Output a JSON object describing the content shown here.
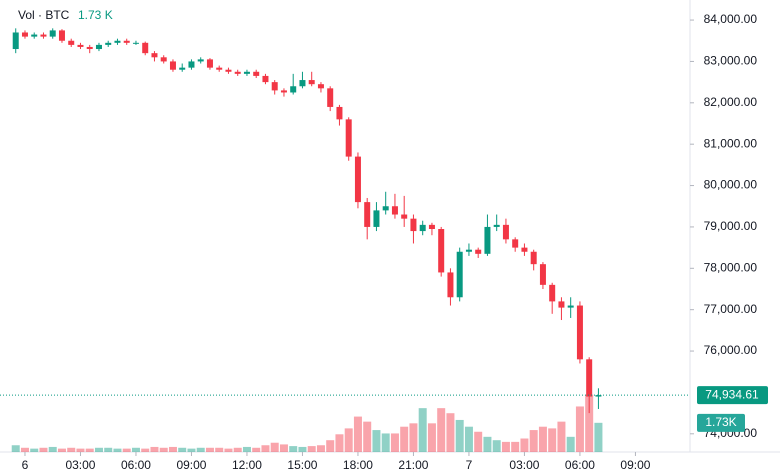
{
  "chart_data": {
    "type": "candlestick",
    "volume_name": "Vol · BTC",
    "volume_legend_value": "1.73 K",
    "up_color": "#089981",
    "down_color": "#f23645",
    "x": [
      -0.5,
      0,
      0.5,
      1,
      1.5,
      2,
      2.5,
      3,
      3.5,
      4,
      4.5,
      5,
      5.5,
      6,
      6.5,
      7,
      7.5,
      8,
      8.5,
      9,
      9.5,
      10,
      10.5,
      11,
      11.5,
      12,
      12.5,
      13,
      13.5,
      14,
      14.5,
      15,
      15.5,
      16,
      16.5,
      17,
      17.5,
      18,
      18.5,
      19,
      19.5,
      20,
      20.5,
      21,
      21.5,
      22,
      22.5,
      23,
      23.5,
      24,
      24.5,
      25,
      25.5,
      26,
      26.5,
      27,
      27.5,
      28,
      28.5,
      29,
      29.5,
      30,
      30.5,
      31
    ],
    "open": [
      83300,
      83700,
      83600,
      83650,
      83600,
      83750,
      83500,
      83400,
      83350,
      83300,
      83400,
      83450,
      83500,
      83450,
      83450,
      83200,
      83100,
      83000,
      82800,
      82850,
      83000,
      83050,
      82850,
      82800,
      82750,
      82700,
      82750,
      82650,
      82500,
      82300,
      82250,
      82400,
      82550,
      82450,
      82350,
      81900,
      81600,
      80700,
      79600,
      79000,
      79400,
      79500,
      79300,
      79200,
      78900,
      79050,
      78950,
      77900,
      77300,
      78400,
      78450,
      78350,
      79000,
      79050,
      78700,
      78500,
      78400,
      78100,
      77600,
      77200,
      77050,
      77100,
      75800,
      74900
    ],
    "high": [
      83800,
      83750,
      83700,
      83700,
      83800,
      83780,
      83550,
      83450,
      83400,
      83450,
      83500,
      83550,
      83550,
      83500,
      83480,
      83250,
      83150,
      83050,
      82950,
      83050,
      83100,
      83080,
      82900,
      82850,
      82800,
      82800,
      82800,
      82700,
      82550,
      82350,
      82700,
      82750,
      82750,
      82500,
      82400,
      81950,
      81650,
      80800,
      79700,
      79600,
      79850,
      79800,
      79750,
      79300,
      79150,
      79100,
      79000,
      78000,
      78500,
      78600,
      78500,
      79300,
      79300,
      79200,
      78750,
      78600,
      78450,
      78150,
      77650,
      77300,
      77300,
      77200,
      75850,
      75100
    ],
    "low": [
      83200,
      83550,
      83550,
      83550,
      83550,
      83450,
      83350,
      83300,
      83200,
      83250,
      83350,
      83400,
      83400,
      83400,
      83150,
      83000,
      82950,
      82750,
      82750,
      82800,
      82950,
      82800,
      82750,
      82700,
      82650,
      82650,
      82600,
      82450,
      82200,
      82150,
      82200,
      82350,
      82400,
      82250,
      81800,
      81450,
      80600,
      79450,
      78700,
      78900,
      79300,
      79200,
      79000,
      78600,
      78800,
      78800,
      77800,
      77100,
      77200,
      78300,
      78250,
      78300,
      78900,
      78600,
      78400,
      78300,
      77950,
      77500,
      76900,
      76750,
      76800,
      75700,
      74500,
      74600
    ],
    "close": [
      83700,
      83600,
      83650,
      83600,
      83750,
      83500,
      83400,
      83350,
      83300,
      83400,
      83450,
      83500,
      83450,
      83450,
      83200,
      83100,
      83000,
      82800,
      82850,
      83000,
      83050,
      82850,
      82800,
      82750,
      82700,
      82750,
      82650,
      82500,
      82300,
      82250,
      82400,
      82550,
      82450,
      82350,
      81900,
      81600,
      80700,
      79600,
      79000,
      79400,
      79500,
      79300,
      79200,
      78900,
      79050,
      78950,
      77900,
      77300,
      78400,
      78450,
      78350,
      79000,
      79050,
      78700,
      78500,
      78400,
      78100,
      77600,
      77200,
      77050,
      77100,
      75800,
      74900,
      74934.61
    ],
    "last_price_label": "74,934.61",
    "volume": [
      400,
      250,
      200,
      250,
      300,
      200,
      250,
      200,
      200,
      250,
      250,
      200,
      200,
      250,
      200,
      300,
      250,
      300,
      250,
      200,
      250,
      250,
      250,
      200,
      250,
      300,
      250,
      400,
      550,
      450,
      350,
      300,
      350,
      400,
      700,
      1050,
      1400,
      2100,
      1800,
      1300,
      1100,
      1100,
      1500,
      1700,
      2600,
      1700,
      2600,
      2300,
      1900,
      1500,
      1200,
      900,
      700,
      600,
      600,
      800,
      1300,
      1500,
      1400,
      1800,
      900,
      2700,
      3400,
      1730
    ],
    "last_volume_label": "1.73K",
    "xlim": [
      -1.35,
      35.95
    ],
    "xticks": [
      {
        "value": 0,
        "label": "6"
      },
      {
        "value": 3,
        "label": "03:00"
      },
      {
        "value": 6,
        "label": "06:00"
      },
      {
        "value": 9,
        "label": "09:00"
      },
      {
        "value": 12,
        "label": "12:00"
      },
      {
        "value": 15,
        "label": "15:00"
      },
      {
        "value": 18,
        "label": "18:00"
      },
      {
        "value": 21,
        "label": "21:00"
      },
      {
        "value": 24,
        "label": "7"
      },
      {
        "value": 27,
        "label": "03:00"
      },
      {
        "value": 30,
        "label": "06:00"
      },
      {
        "value": 33,
        "label": "09:00"
      }
    ],
    "ylim": [
      73560,
      84485
    ],
    "yticks": [
      {
        "value": 84000,
        "label": "84,000.00"
      },
      {
        "value": 83000,
        "label": "83,000.00"
      },
      {
        "value": 82000,
        "label": "82,000.00"
      },
      {
        "value": 81000,
        "label": "81,000.00"
      },
      {
        "value": 80000,
        "label": "80,000.00"
      },
      {
        "value": 79000,
        "label": "79,000.00"
      },
      {
        "value": 78000,
        "label": "78,000.00"
      },
      {
        "value": 77000,
        "label": "77,000.00"
      },
      {
        "value": 76000,
        "label": "76,000.00"
      },
      {
        "value": 74000,
        "label": "74,000.00"
      }
    ],
    "y2lim": [
      0,
      26800
    ]
  }
}
